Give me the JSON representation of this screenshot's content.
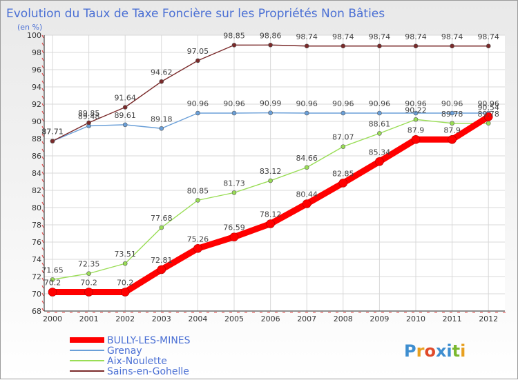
{
  "chart_data": {
    "type": "line",
    "title": "Evolution du Taux de Taxe Foncière sur les Propriétés Non Bâties",
    "subtitle": "(en %)",
    "x": [
      "2000",
      "2001",
      "2002",
      "2003",
      "2004",
      "2005",
      "2006",
      "2007",
      "2008",
      "2009",
      "2010",
      "2011",
      "2012"
    ],
    "ylim": [
      68,
      100
    ],
    "yticks": [
      68,
      70,
      72,
      74,
      76,
      78,
      80,
      82,
      84,
      86,
      88,
      90,
      92,
      94,
      96,
      98,
      100
    ],
    "grid": true,
    "legend_position": "bottom-left",
    "series": [
      {
        "name": "BULLY-LES-MINES",
        "color": "#ff0000",
        "values": [
          70.2,
          70.2,
          70.2,
          72.81,
          75.26,
          76.59,
          78.12,
          80.44,
          82.85,
          85.34,
          87.9,
          87.9,
          90.54
        ]
      },
      {
        "name": "Grenay",
        "color": "#6a9fd8",
        "values": [
          87.71,
          89.48,
          89.61,
          89.18,
          90.96,
          90.96,
          90.99,
          90.96,
          90.96,
          90.96,
          90.96,
          90.96,
          90.96
        ]
      },
      {
        "name": "Aix-Noulette",
        "color": "#99dd55",
        "values": [
          71.65,
          72.35,
          73.51,
          77.68,
          80.85,
          81.73,
          83.12,
          84.66,
          87.07,
          88.61,
          90.22,
          89.78,
          89.78
        ]
      },
      {
        "name": "Sains-en-Gohelle",
        "color": "#7a2a2a",
        "values": [
          87.71,
          89.85,
          91.64,
          94.62,
          97.05,
          98.85,
          98.86,
          98.74,
          98.74,
          98.74,
          98.74,
          98.74,
          98.74
        ]
      }
    ]
  },
  "logo_text": "Proxiti"
}
